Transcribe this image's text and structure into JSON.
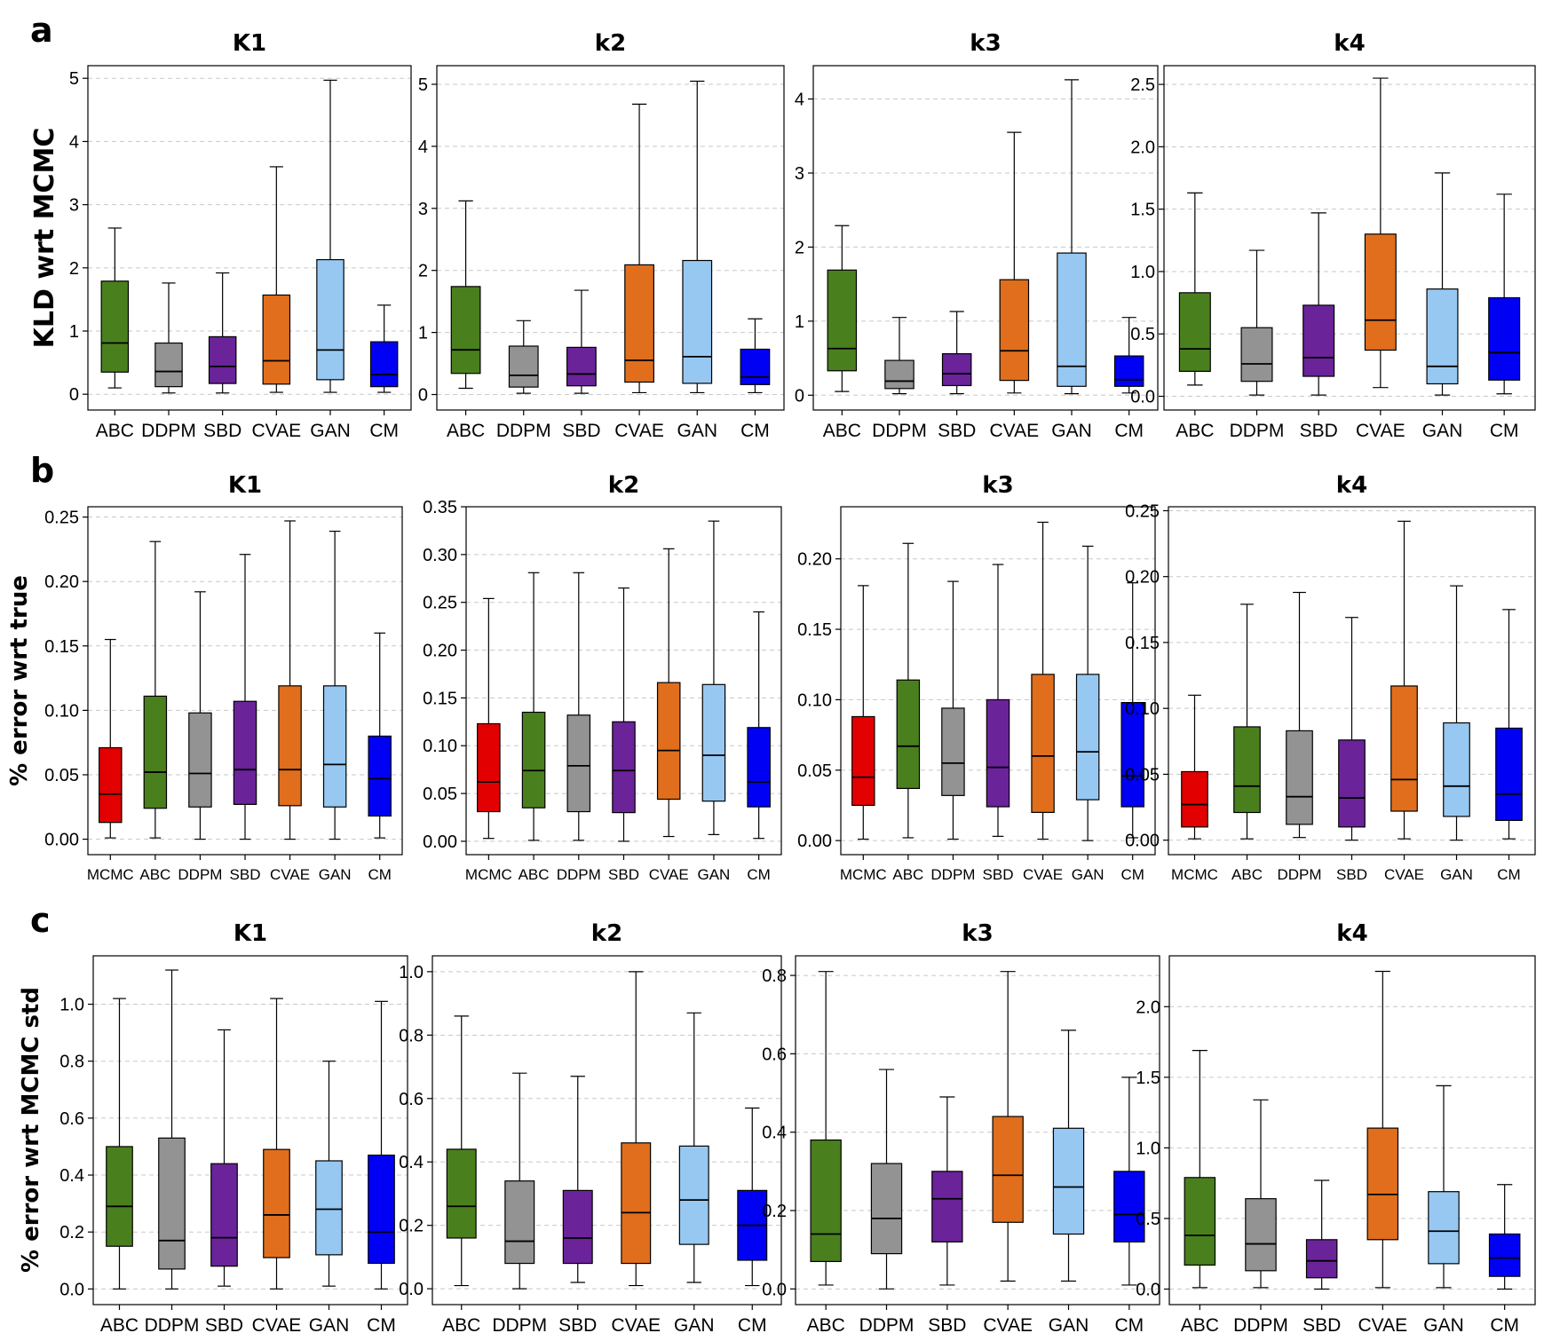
{
  "colors": {
    "MCMC": "#e30000",
    "ABC": "#4a7f1e",
    "DDPM": "#939393",
    "SBD": "#6a2399",
    "CVAE": "#e06e1c",
    "GAN": "#97c8f2",
    "CM": "#0000f5"
  },
  "chart_data": [
    {
      "type": "box",
      "row": "a",
      "title": "K1",
      "ylabel": "KLD wrt MCMC",
      "ylim": [
        -0.25,
        5.2
      ],
      "yticks": [
        0,
        1,
        2,
        3,
        4,
        5
      ],
      "tick_labels": [
        "0",
        "1",
        "2",
        "3",
        "4",
        "5"
      ],
      "categories": [
        "ABC",
        "DDPM",
        "SBD",
        "CVAE",
        "GAN",
        "CM"
      ],
      "boxes": [
        {
          "min": 0.1,
          "q1": 0.35,
          "median": 0.81,
          "q3": 1.79,
          "max": 2.63
        },
        {
          "min": 0.02,
          "q1": 0.12,
          "median": 0.36,
          "q3": 0.81,
          "max": 1.76
        },
        {
          "min": 0.02,
          "q1": 0.17,
          "median": 0.44,
          "q3": 0.91,
          "max": 1.92
        },
        {
          "min": 0.03,
          "q1": 0.16,
          "median": 0.53,
          "q3": 1.57,
          "max": 3.6
        },
        {
          "min": 0.03,
          "q1": 0.23,
          "median": 0.7,
          "q3": 2.13,
          "max": 4.97
        },
        {
          "min": 0.03,
          "q1": 0.12,
          "median": 0.31,
          "q3": 0.83,
          "max": 1.41
        }
      ]
    },
    {
      "type": "box",
      "row": "a",
      "title": "k2",
      "ylabel": "",
      "ylim": [
        -0.25,
        5.3
      ],
      "yticks": [
        0,
        1,
        2,
        3,
        4,
        5
      ],
      "tick_labels": [
        "0",
        "1",
        "2",
        "3",
        "4",
        "5"
      ],
      "categories": [
        "ABC",
        "DDPM",
        "SBD",
        "CVAE",
        "GAN",
        "CM"
      ],
      "boxes": [
        {
          "min": 0.1,
          "q1": 0.34,
          "median": 0.72,
          "q3": 1.74,
          "max": 3.12
        },
        {
          "min": 0.02,
          "q1": 0.12,
          "median": 0.31,
          "q3": 0.78,
          "max": 1.19
        },
        {
          "min": 0.02,
          "q1": 0.14,
          "median": 0.33,
          "q3": 0.76,
          "max": 1.68
        },
        {
          "min": 0.03,
          "q1": 0.2,
          "median": 0.55,
          "q3": 2.09,
          "max": 4.68
        },
        {
          "min": 0.03,
          "q1": 0.18,
          "median": 0.61,
          "q3": 2.16,
          "max": 5.05
        },
        {
          "min": 0.03,
          "q1": 0.16,
          "median": 0.28,
          "q3": 0.73,
          "max": 1.22
        }
      ]
    },
    {
      "type": "box",
      "row": "a",
      "title": "k3",
      "ylabel": "",
      "ylim": [
        -0.2,
        4.45
      ],
      "yticks": [
        0,
        1,
        2,
        3,
        4
      ],
      "tick_labels": [
        "0",
        "1",
        "2",
        "3",
        "4"
      ],
      "categories": [
        "ABC",
        "DDPM",
        "SBD",
        "CVAE",
        "GAN",
        "CM"
      ],
      "boxes": [
        {
          "min": 0.05,
          "q1": 0.33,
          "median": 0.63,
          "q3": 1.69,
          "max": 2.29
        },
        {
          "min": 0.02,
          "q1": 0.09,
          "median": 0.19,
          "q3": 0.47,
          "max": 1.05
        },
        {
          "min": 0.02,
          "q1": 0.13,
          "median": 0.29,
          "q3": 0.56,
          "max": 1.13
        },
        {
          "min": 0.03,
          "q1": 0.2,
          "median": 0.6,
          "q3": 1.56,
          "max": 3.55
        },
        {
          "min": 0.02,
          "q1": 0.12,
          "median": 0.39,
          "q3": 1.92,
          "max": 4.26
        },
        {
          "min": 0.03,
          "q1": 0.12,
          "median": 0.21,
          "q3": 0.53,
          "max": 1.05
        }
      ]
    },
    {
      "type": "box",
      "row": "a",
      "title": "k4",
      "ylabel": "",
      "ylim": [
        -0.11,
        2.65
      ],
      "yticks": [
        0,
        0.5,
        1,
        1.5,
        2,
        2.5
      ],
      "tick_labels": [
        "0.0",
        "0.5",
        "1.0",
        "1.5",
        "2.0",
        "2.5"
      ],
      "categories": [
        "ABC",
        "DDPM",
        "SBD",
        "CVAE",
        "GAN",
        "CM"
      ],
      "boxes": [
        {
          "min": 0.09,
          "q1": 0.2,
          "median": 0.38,
          "q3": 0.83,
          "max": 1.63
        },
        {
          "min": 0.01,
          "q1": 0.12,
          "median": 0.26,
          "q3": 0.55,
          "max": 1.17
        },
        {
          "min": 0.01,
          "q1": 0.16,
          "median": 0.31,
          "q3": 0.73,
          "max": 1.47
        },
        {
          "min": 0.07,
          "q1": 0.37,
          "median": 0.61,
          "q3": 1.3,
          "max": 2.55
        },
        {
          "min": 0.01,
          "q1": 0.1,
          "median": 0.24,
          "q3": 0.86,
          "max": 1.79
        },
        {
          "min": 0.02,
          "q1": 0.13,
          "median": 0.35,
          "q3": 0.79,
          "max": 1.62
        }
      ]
    },
    {
      "type": "box",
      "row": "b",
      "title": "K1",
      "ylabel": "% error wrt true",
      "ylim": [
        -0.012,
        0.258
      ],
      "yticks": [
        0,
        0.05,
        0.1,
        0.15,
        0.2,
        0.25
      ],
      "tick_labels": [
        "0.00",
        "0.05",
        "0.10",
        "0.15",
        "0.20",
        "0.25"
      ],
      "categories": [
        "MCMC",
        "ABC",
        "DDPM",
        "SBD",
        "CVAE",
        "GAN",
        "CM"
      ],
      "boxes": [
        {
          "min": 0.001,
          "q1": 0.013,
          "median": 0.035,
          "q3": 0.071,
          "max": 0.155
        },
        {
          "min": 0.001,
          "q1": 0.024,
          "median": 0.052,
          "q3": 0.111,
          "max": 0.231
        },
        {
          "min": 0.0,
          "q1": 0.025,
          "median": 0.051,
          "q3": 0.098,
          "max": 0.192
        },
        {
          "min": 0.0,
          "q1": 0.027,
          "median": 0.054,
          "q3": 0.107,
          "max": 0.221
        },
        {
          "min": 0.0,
          "q1": 0.026,
          "median": 0.054,
          "q3": 0.119,
          "max": 0.247
        },
        {
          "min": 0.0,
          "q1": 0.025,
          "median": 0.058,
          "q3": 0.119,
          "max": 0.239
        },
        {
          "min": 0.001,
          "q1": 0.018,
          "median": 0.047,
          "q3": 0.08,
          "max": 0.16
        }
      ]
    },
    {
      "type": "box",
      "row": "b",
      "title": "k2",
      "ylabel": "",
      "ylim": [
        -0.014,
        0.35
      ],
      "yticks": [
        0,
        0.05,
        0.1,
        0.15,
        0.2,
        0.25,
        0.3,
        0.35
      ],
      "tick_labels": [
        "0.00",
        "0.05",
        "0.10",
        "0.15",
        "0.20",
        "0.25",
        "0.30",
        "0.35"
      ],
      "categories": [
        "MCMC",
        "ABC",
        "DDPM",
        "SBD",
        "CVAE",
        "GAN",
        "CM"
      ],
      "boxes": [
        {
          "min": 0.003,
          "q1": 0.031,
          "median": 0.062,
          "q3": 0.123,
          "max": 0.254
        },
        {
          "min": 0.001,
          "q1": 0.035,
          "median": 0.074,
          "q3": 0.135,
          "max": 0.281
        },
        {
          "min": 0.001,
          "q1": 0.031,
          "median": 0.079,
          "q3": 0.132,
          "max": 0.281
        },
        {
          "min": 0.0,
          "q1": 0.03,
          "median": 0.074,
          "q3": 0.125,
          "max": 0.265
        },
        {
          "min": 0.005,
          "q1": 0.044,
          "median": 0.095,
          "q3": 0.166,
          "max": 0.306
        },
        {
          "min": 0.007,
          "q1": 0.042,
          "median": 0.09,
          "q3": 0.164,
          "max": 0.335
        },
        {
          "min": 0.003,
          "q1": 0.036,
          "median": 0.062,
          "q3": 0.119,
          "max": 0.24
        }
      ]
    },
    {
      "type": "box",
      "row": "b",
      "title": "k3",
      "ylabel": "",
      "ylim": [
        -0.01,
        0.237
      ],
      "yticks": [
        0,
        0.05,
        0.1,
        0.15,
        0.2
      ],
      "tick_labels": [
        "0.00",
        "0.05",
        "0.10",
        "0.15",
        "0.20"
      ],
      "categories": [
        "MCMC",
        "ABC",
        "DDPM",
        "SBD",
        "CVAE",
        "GAN",
        "CM"
      ],
      "boxes": [
        {
          "min": 0.001,
          "q1": 0.025,
          "median": 0.045,
          "q3": 0.088,
          "max": 0.181
        },
        {
          "min": 0.002,
          "q1": 0.037,
          "median": 0.067,
          "q3": 0.114,
          "max": 0.211
        },
        {
          "min": 0.001,
          "q1": 0.032,
          "median": 0.055,
          "q3": 0.094,
          "max": 0.184
        },
        {
          "min": 0.003,
          "q1": 0.024,
          "median": 0.052,
          "q3": 0.1,
          "max": 0.196
        },
        {
          "min": 0.001,
          "q1": 0.02,
          "median": 0.06,
          "q3": 0.118,
          "max": 0.226
        },
        {
          "min": 0.0,
          "q1": 0.029,
          "median": 0.063,
          "q3": 0.118,
          "max": 0.209
        },
        {
          "min": 0.002,
          "q1": 0.024,
          "median": 0.046,
          "q3": 0.098,
          "max": 0.183
        }
      ]
    },
    {
      "type": "box",
      "row": "b",
      "title": "k4",
      "ylabel": "",
      "ylim": [
        -0.011,
        0.253
      ],
      "yticks": [
        0,
        0.05,
        0.1,
        0.15,
        0.2,
        0.25
      ],
      "tick_labels": [
        "0.00",
        "0.05",
        "0.10",
        "0.15",
        "0.20",
        "0.25"
      ],
      "categories": [
        "MCMC",
        "ABC",
        "DDPM",
        "SBD",
        "CVAE",
        "GAN",
        "CM"
      ],
      "boxes": [
        {
          "min": 0.001,
          "q1": 0.01,
          "median": 0.027,
          "q3": 0.052,
          "max": 0.11
        },
        {
          "min": 0.001,
          "q1": 0.021,
          "median": 0.041,
          "q3": 0.086,
          "max": 0.179
        },
        {
          "min": 0.002,
          "q1": 0.012,
          "median": 0.033,
          "q3": 0.083,
          "max": 0.188
        },
        {
          "min": 0.0,
          "q1": 0.01,
          "median": 0.032,
          "q3": 0.076,
          "max": 0.169
        },
        {
          "min": 0.001,
          "q1": 0.022,
          "median": 0.046,
          "q3": 0.117,
          "max": 0.242
        },
        {
          "min": 0.0,
          "q1": 0.018,
          "median": 0.041,
          "q3": 0.089,
          "max": 0.193
        },
        {
          "min": 0.001,
          "q1": 0.015,
          "median": 0.035,
          "q3": 0.085,
          "max": 0.175
        }
      ]
    },
    {
      "type": "box",
      "row": "c",
      "title": "K1",
      "ylabel": "% error wrt MCMC std",
      "ylim": [
        -0.055,
        1.17
      ],
      "yticks": [
        0,
        0.2,
        0.4,
        0.6,
        0.8,
        1
      ],
      "tick_labels": [
        "0.0",
        "0.2",
        "0.4",
        "0.6",
        "0.8",
        "1.0"
      ],
      "categories": [
        "ABC",
        "DDPM",
        "SBD",
        "CVAE",
        "GAN",
        "CM"
      ],
      "boxes": [
        {
          "min": 0.0,
          "q1": 0.15,
          "median": 0.29,
          "q3": 0.5,
          "max": 1.02
        },
        {
          "min": 0.0,
          "q1": 0.07,
          "median": 0.17,
          "q3": 0.53,
          "max": 1.12
        },
        {
          "min": 0.01,
          "q1": 0.08,
          "median": 0.18,
          "q3": 0.44,
          "max": 0.91
        },
        {
          "min": 0.0,
          "q1": 0.11,
          "median": 0.26,
          "q3": 0.49,
          "max": 1.02
        },
        {
          "min": 0.01,
          "q1": 0.12,
          "median": 0.28,
          "q3": 0.45,
          "max": 0.8
        },
        {
          "min": 0.0,
          "q1": 0.09,
          "median": 0.2,
          "q3": 0.47,
          "max": 1.01
        }
      ]
    },
    {
      "type": "box",
      "row": "c",
      "title": "k2",
      "ylabel": "",
      "ylim": [
        -0.05,
        1.05
      ],
      "yticks": [
        0,
        0.2,
        0.4,
        0.6,
        0.8,
        1
      ],
      "tick_labels": [
        "0.0",
        "0.2",
        "0.4",
        "0.6",
        "0.8",
        "1.0"
      ],
      "categories": [
        "ABC",
        "DDPM",
        "SBD",
        "CVAE",
        "GAN",
        "CM"
      ],
      "boxes": [
        {
          "min": 0.01,
          "q1": 0.16,
          "median": 0.26,
          "q3": 0.44,
          "max": 0.86
        },
        {
          "min": 0.0,
          "q1": 0.08,
          "median": 0.15,
          "q3": 0.34,
          "max": 0.68
        },
        {
          "min": 0.02,
          "q1": 0.08,
          "median": 0.16,
          "q3": 0.31,
          "max": 0.67
        },
        {
          "min": 0.01,
          "q1": 0.08,
          "median": 0.24,
          "q3": 0.46,
          "max": 1.0
        },
        {
          "min": 0.02,
          "q1": 0.14,
          "median": 0.28,
          "q3": 0.45,
          "max": 0.87
        },
        {
          "min": 0.01,
          "q1": 0.09,
          "median": 0.2,
          "q3": 0.31,
          "max": 0.57
        }
      ]
    },
    {
      "type": "box",
      "row": "c",
      "title": "k3",
      "ylabel": "",
      "ylim": [
        -0.04,
        0.85
      ],
      "yticks": [
        0,
        0.2,
        0.4,
        0.6,
        0.8
      ],
      "tick_labels": [
        "0.0",
        "0.2",
        "0.4",
        "0.6",
        "0.8"
      ],
      "categories": [
        "ABC",
        "DDPM",
        "SBD",
        "CVAE",
        "GAN",
        "CM"
      ],
      "boxes": [
        {
          "min": 0.01,
          "q1": 0.07,
          "median": 0.14,
          "q3": 0.38,
          "max": 0.81
        },
        {
          "min": 0.0,
          "q1": 0.09,
          "median": 0.18,
          "q3": 0.32,
          "max": 0.56
        },
        {
          "min": 0.01,
          "q1": 0.12,
          "median": 0.23,
          "q3": 0.3,
          "max": 0.49
        },
        {
          "min": 0.02,
          "q1": 0.17,
          "median": 0.29,
          "q3": 0.44,
          "max": 0.81
        },
        {
          "min": 0.02,
          "q1": 0.14,
          "median": 0.26,
          "q3": 0.41,
          "max": 0.66
        },
        {
          "min": 0.01,
          "q1": 0.12,
          "median": 0.19,
          "q3": 0.3,
          "max": 0.54
        }
      ]
    },
    {
      "type": "box",
      "row": "c",
      "title": "k4",
      "ylabel": "",
      "ylim": [
        -0.11,
        2.36
      ],
      "yticks": [
        0,
        0.5,
        1,
        1.5,
        2
      ],
      "tick_labels": [
        "0.0",
        "0.5",
        "1.0",
        "1.5",
        "2.0"
      ],
      "categories": [
        "ABC",
        "DDPM",
        "SBD",
        "CVAE",
        "GAN",
        "CM"
      ],
      "boxes": [
        {
          "min": 0.01,
          "q1": 0.17,
          "median": 0.38,
          "q3": 0.79,
          "max": 1.69
        },
        {
          "min": 0.01,
          "q1": 0.13,
          "median": 0.32,
          "q3": 0.64,
          "max": 1.34
        },
        {
          "min": 0.0,
          "q1": 0.08,
          "median": 0.2,
          "q3": 0.35,
          "max": 0.77
        },
        {
          "min": 0.01,
          "q1": 0.35,
          "median": 0.67,
          "q3": 1.14,
          "max": 2.25
        },
        {
          "min": 0.01,
          "q1": 0.18,
          "median": 0.41,
          "q3": 0.69,
          "max": 1.44
        },
        {
          "min": 0.0,
          "q1": 0.09,
          "median": 0.22,
          "q3": 0.39,
          "max": 0.74
        }
      ]
    }
  ],
  "panel_letters": [
    "a",
    "b",
    "c"
  ]
}
